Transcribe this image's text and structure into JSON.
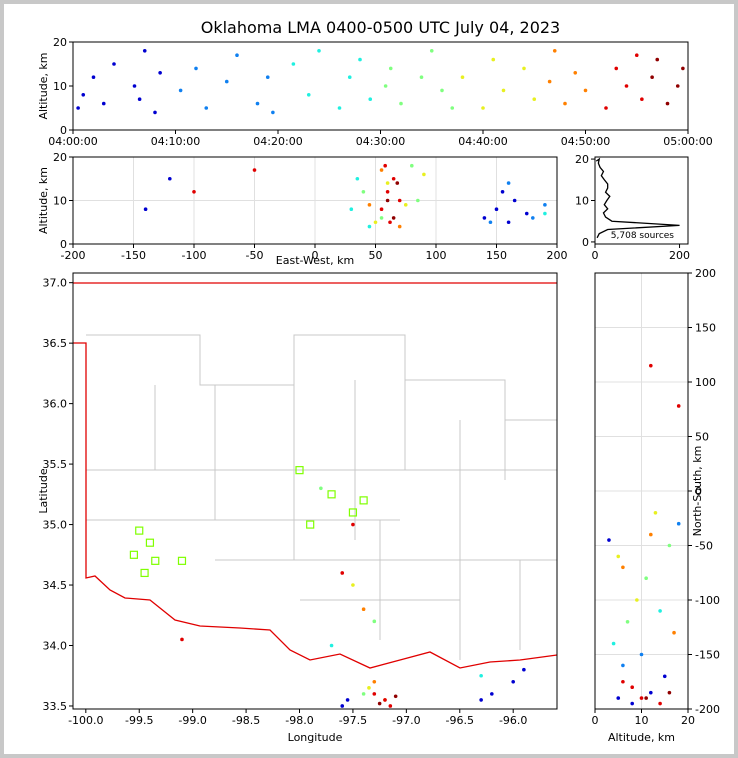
{
  "chart_data": [
    {
      "type": "scatter",
      "title": "Oklahoma LMA 0400-0500 UTC July 04, 2023",
      "ylabel": "Altitude, km",
      "xlim": [
        0,
        60
      ],
      "xticks": [
        {
          "value": 0,
          "label": "04:00:00"
        },
        {
          "value": 10,
          "label": "04:10:00"
        },
        {
          "value": 20,
          "label": "04:20:00"
        },
        {
          "value": 30,
          "label": "04:30:00"
        },
        {
          "value": 40,
          "label": "04:40:00"
        },
        {
          "value": 50,
          "label": "04:50:00"
        },
        {
          "value": 60,
          "label": "05:00:00"
        }
      ],
      "ylim": [
        0,
        20
      ],
      "yticks": [
        0,
        10,
        20
      ],
      "grid": false,
      "series": [
        {
          "color": "#0000d0",
          "x": [
            0.5,
            1,
            2,
            3,
            4,
            6,
            7,
            8,
            6.5,
            8.5
          ],
          "y": [
            5,
            8,
            12,
            6,
            15,
            10,
            18,
            4,
            7,
            13
          ]
        },
        {
          "color": "#1080f0",
          "x": [
            10.5,
            12,
            13,
            15,
            16,
            18,
            19,
            19.5
          ],
          "y": [
            9,
            14,
            5,
            11,
            17,
            6,
            12,
            4
          ]
        },
        {
          "color": "#20f0e0",
          "x": [
            21.5,
            23,
            24,
            26,
            27,
            28,
            29
          ],
          "y": [
            15,
            8,
            18,
            5,
            12,
            16,
            7
          ]
        },
        {
          "color": "#80ff80",
          "x": [
            30.5,
            31,
            32,
            34,
            35,
            36,
            37
          ],
          "y": [
            10,
            14,
            6,
            12,
            18,
            9,
            5
          ]
        },
        {
          "color": "#e8f020",
          "x": [
            38,
            40,
            41,
            42,
            44,
            45
          ],
          "y": [
            12,
            5,
            16,
            9,
            14,
            7
          ]
        },
        {
          "color": "#ff8000",
          "x": [
            46.5,
            47,
            48,
            49,
            50
          ],
          "y": [
            11,
            18,
            6,
            13,
            9
          ]
        },
        {
          "color": "#e00000",
          "x": [
            52,
            53,
            54,
            55,
            55.5
          ],
          "y": [
            5,
            14,
            10,
            17,
            7
          ]
        },
        {
          "color": "#900000",
          "x": [
            56.5,
            57,
            58,
            59,
            59.5
          ],
          "y": [
            12,
            16,
            6,
            10,
            14
          ]
        }
      ]
    },
    {
      "type": "scatter",
      "xlabel": "East-West, km",
      "ylabel": "Altitude, km",
      "xlim": [
        -200,
        200
      ],
      "xticks": [
        -200,
        -150,
        -100,
        -50,
        0,
        50,
        100,
        150,
        200
      ],
      "ylim": [
        0,
        20
      ],
      "yticks": [
        0,
        10,
        20
      ],
      "grid": true,
      "series": [
        {
          "color": "#0000d0",
          "x": [
            140,
            150,
            155,
            160,
            165,
            175,
            -140,
            -120
          ],
          "y": [
            6,
            8,
            12,
            5,
            10,
            7,
            8,
            15
          ]
        },
        {
          "color": "#1080f0",
          "x": [
            145,
            160,
            180,
            190
          ],
          "y": [
            5,
            14,
            6,
            9
          ]
        },
        {
          "color": "#20f0e0",
          "x": [
            30,
            35,
            45,
            190
          ],
          "y": [
            8,
            15,
            4,
            7
          ]
        },
        {
          "color": "#80ff80",
          "x": [
            40,
            55,
            80,
            85
          ],
          "y": [
            12,
            6,
            18,
            10
          ]
        },
        {
          "color": "#e8f020",
          "x": [
            50,
            60,
            75,
            90
          ],
          "y": [
            5,
            14,
            9,
            16
          ]
        },
        {
          "color": "#ff8000",
          "x": [
            45,
            55,
            70
          ],
          "y": [
            9,
            17,
            4
          ]
        },
        {
          "color": "#e00000",
          "x": [
            55,
            60,
            65,
            70,
            62,
            58,
            -100,
            -50
          ],
          "y": [
            8,
            12,
            15,
            10,
            5,
            18,
            12,
            17
          ]
        },
        {
          "color": "#900000",
          "x": [
            60,
            65,
            68
          ],
          "y": [
            10,
            6,
            14
          ]
        }
      ]
    },
    {
      "type": "line",
      "annotation": "5,708 sources",
      "xlim": [
        0,
        220
      ],
      "xticks": [
        0,
        200
      ],
      "ylim": [
        -0.5,
        20.5
      ],
      "yticks": [
        0,
        10,
        20
      ],
      "grid": false,
      "series": [
        {
          "color": "#000000",
          "x": [
            5,
            10,
            30,
            200,
            40,
            25,
            20,
            30,
            22,
            28,
            35,
            25,
            30,
            30,
            22,
            15,
            20,
            12,
            8,
            10,
            3
          ],
          "y": [
            1,
            2,
            3,
            4,
            5,
            6,
            7,
            8,
            9,
            10,
            11,
            12,
            13,
            14,
            15,
            16,
            17,
            18,
            19,
            20,
            19.5
          ]
        }
      ]
    },
    {
      "type": "scatter",
      "xlabel": "Longitude",
      "ylabel": "Latitude",
      "xlim": [
        -100.12,
        -95.59
      ],
      "xticks": [
        {
          "value": -100,
          "label": "-100.0"
        },
        -99.5,
        {
          "value": -99,
          "label": "-99.0"
        },
        -98.5,
        {
          "value": -98,
          "label": "-98.0"
        },
        -97.5,
        {
          "value": -97,
          "label": "-97.0"
        },
        -96.5,
        {
          "value": -96,
          "label": "-96.0"
        }
      ],
      "ylim": [
        33.475,
        37.08
      ],
      "yticks": [
        33.5,
        {
          "value": 34,
          "label": "34.0"
        },
        34.5,
        {
          "value": 35,
          "label": "35.0"
        },
        35.5,
        {
          "value": 36,
          "label": "36.0"
        },
        36.5,
        {
          "value": 37,
          "label": "37.0"
        }
      ],
      "grid": false,
      "series": [
        {
          "color": "#0000d0",
          "x": [
            -97.6,
            -97.55,
            -96.2,
            -96.0,
            -96.3,
            -95.9
          ],
          "y": [
            33.5,
            33.55,
            33.6,
            33.7,
            33.55,
            33.8
          ]
        },
        {
          "color": "#20f0e0",
          "x": [
            -96.3,
            -97.7
          ],
          "y": [
            33.75,
            34.0
          ]
        },
        {
          "color": "#80ff80",
          "x": [
            -97.4,
            -97.3,
            -97.8
          ],
          "y": [
            33.6,
            34.2,
            35.3
          ]
        },
        {
          "color": "#e8f020",
          "x": [
            -97.35,
            -97.5
          ],
          "y": [
            33.65,
            34.5
          ]
        },
        {
          "color": "#ff8000",
          "x": [
            -97.3,
            -97.4,
            -97.2
          ],
          "y": [
            33.7,
            34.3,
            33.55
          ]
        },
        {
          "color": "#e00000",
          "x": [
            -97.2,
            -97.3,
            -97.15,
            -97.6,
            -97.5,
            -99.1
          ],
          "y": [
            33.55,
            33.6,
            33.5,
            34.6,
            35.0,
            34.05
          ]
        },
        {
          "color": "#900000",
          "x": [
            -97.25,
            -97.1
          ],
          "y": [
            33.52,
            33.58
          ]
        },
        {
          "color": "#7fff00",
          "marker": "square",
          "x": [
            -98.0,
            -97.7,
            -97.9,
            -99.5,
            -99.4,
            -99.55,
            -99.45,
            -99.35,
            -99.1,
            -97.5,
            -97.4
          ],
          "y": [
            35.45,
            35.25,
            35.0,
            34.95,
            34.85,
            34.75,
            34.6,
            34.7,
            34.7,
            35.1,
            35.2
          ]
        }
      ]
    },
    {
      "type": "scatter",
      "xlabel": "Altitude, km",
      "ylabel": "North-South, km",
      "xlim": [
        0,
        20
      ],
      "xticks": [
        0,
        10,
        20
      ],
      "ylim": [
        -200,
        200
      ],
      "yticks": [
        -200,
        -150,
        -100,
        -50,
        0,
        50,
        100,
        150,
        200
      ],
      "grid": true,
      "series": [
        {
          "color": "#0000d0",
          "x": [
            5,
            8,
            12,
            15,
            3
          ],
          "y": [
            -190,
            -195,
            -185,
            -170,
            -45
          ]
        },
        {
          "color": "#1080f0",
          "x": [
            6,
            10,
            18
          ],
          "y": [
            -160,
            -150,
            -30
          ]
        },
        {
          "color": "#20f0e0",
          "x": [
            4,
            14
          ],
          "y": [
            -140,
            -110
          ]
        },
        {
          "color": "#80ff80",
          "x": [
            7,
            11,
            16
          ],
          "y": [
            -120,
            -80,
            -50
          ]
        },
        {
          "color": "#e8f020",
          "x": [
            9,
            5,
            13
          ],
          "y": [
            -100,
            -60,
            -20
          ]
        },
        {
          "color": "#ff8000",
          "x": [
            6,
            12,
            17
          ],
          "y": [
            -70,
            -40,
            -130
          ]
        },
        {
          "color": "#e00000",
          "x": [
            8,
            10,
            14,
            6,
            12,
            18
          ],
          "y": [
            -180,
            -190,
            -195,
            -175,
            115,
            78
          ]
        },
        {
          "color": "#900000",
          "x": [
            11,
            16
          ],
          "y": [
            -190,
            -185
          ]
        }
      ]
    }
  ]
}
